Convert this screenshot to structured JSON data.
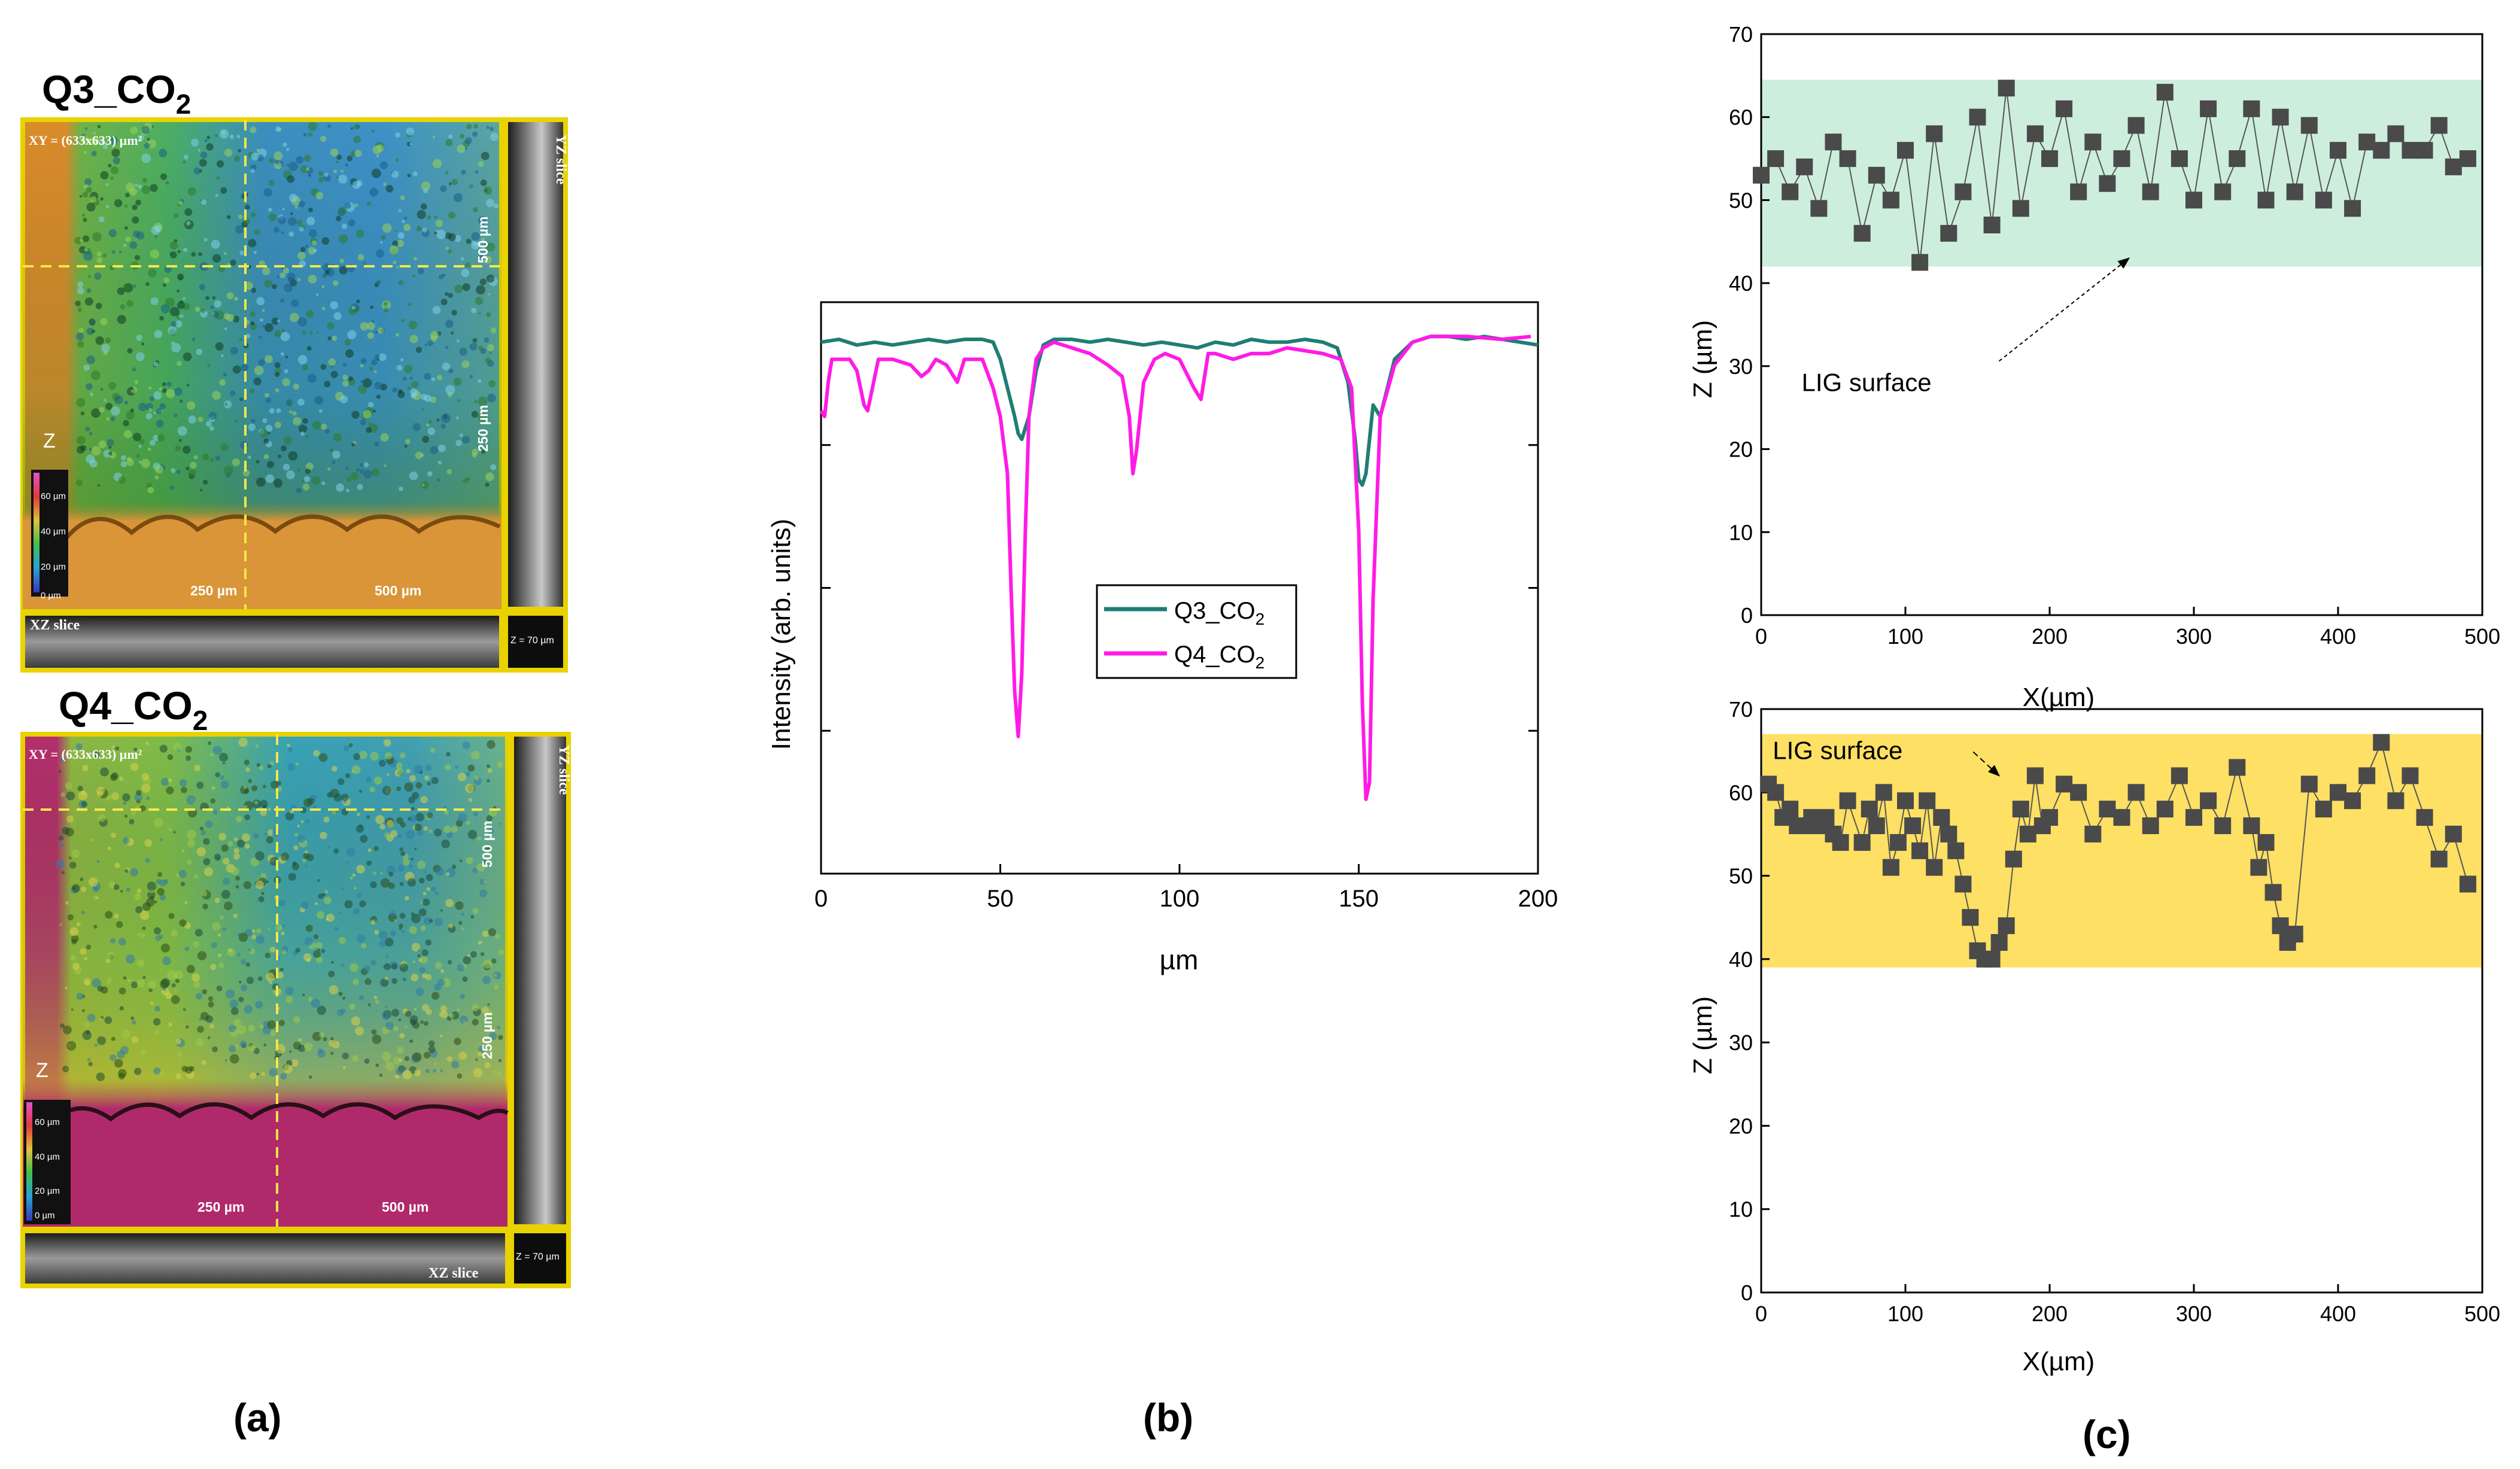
{
  "figure_labels": {
    "a": "(a)",
    "b": "(b)",
    "c": "(c)"
  },
  "panel_a": {
    "images": [
      {
        "title": "Q3_CO",
        "title_sub": "2",
        "xy_label": "XY = (633x633) µm²",
        "yz_label": "YZ slice",
        "xz_label": "XZ slice",
        "z_range": "Z = 70 µm",
        "z_axis": "Z",
        "scale_x": [
          "250 µm",
          "500 µm"
        ],
        "scale_y": [
          "500 µm",
          "250 µm"
        ],
        "colorbar": [
          "60 µm",
          "40 µm",
          "20 µm",
          "0 µm"
        ],
        "base_color": "#d8922e"
      },
      {
        "title": "Q4_CO",
        "title_sub": "2",
        "xy_label": "XY = (633x633) µm²",
        "yz_label": "YZ slice",
        "xz_label": "XZ slice",
        "z_range": "Z = 70 µm",
        "z_axis": "Z",
        "scale_x": [
          "250 µm",
          "500 µm"
        ],
        "scale_y": [
          "500 µm",
          "250 µm"
        ],
        "colorbar": [
          "60 µm",
          "40 µm",
          "20 µm",
          "0 µm"
        ],
        "base_color": "#b8306e"
      }
    ]
  },
  "chart_data": [
    {
      "type": "line",
      "id": "b",
      "xlabel": "µm",
      "ylabel": "Intensity (arb. units)",
      "xlim": [
        0,
        200
      ],
      "ylim": [
        0,
        1
      ],
      "xticks": [
        0,
        50,
        100,
        150,
        200
      ],
      "legend": [
        "Q3_CO",
        "Q4_CO"
      ],
      "legend_sub": "2",
      "series": [
        {
          "name": "Q3_CO2",
          "color": "#1e7e74",
          "x": [
            0,
            5,
            10,
            15,
            20,
            25,
            30,
            35,
            40,
            45,
            48,
            50,
            52,
            54,
            55,
            56,
            58,
            60,
            62,
            65,
            70,
            75,
            80,
            85,
            90,
            95,
            100,
            105,
            110,
            115,
            120,
            125,
            130,
            135,
            140,
            144,
            147,
            149,
            150,
            151,
            152,
            153,
            154,
            156,
            158,
            160,
            165,
            170,
            175,
            180,
            185,
            190,
            195,
            200
          ],
          "y": [
            0.93,
            0.935,
            0.925,
            0.93,
            0.925,
            0.93,
            0.935,
            0.93,
            0.935,
            0.935,
            0.93,
            0.9,
            0.85,
            0.8,
            0.77,
            0.76,
            0.8,
            0.88,
            0.925,
            0.935,
            0.935,
            0.93,
            0.935,
            0.93,
            0.925,
            0.93,
            0.925,
            0.92,
            0.93,
            0.925,
            0.935,
            0.93,
            0.93,
            0.935,
            0.93,
            0.92,
            0.86,
            0.76,
            0.69,
            0.68,
            0.7,
            0.76,
            0.82,
            0.8,
            0.85,
            0.9,
            0.93,
            0.94,
            0.94,
            0.935,
            0.94,
            0.935,
            0.93,
            0.925
          ]
        },
        {
          "name": "Q4_CO2",
          "color": "#ff1ae6",
          "x": [
            0,
            1,
            2,
            3,
            5,
            8,
            10,
            12,
            13,
            14,
            16,
            20,
            25,
            28,
            30,
            32,
            35,
            38,
            40,
            45,
            48,
            50,
            52,
            53,
            54,
            55,
            56,
            57,
            58,
            60,
            62,
            65,
            70,
            75,
            80,
            84,
            86,
            87,
            88,
            90,
            93,
            96,
            100,
            104,
            106,
            107,
            108,
            110,
            115,
            120,
            125,
            130,
            140,
            145,
            148,
            150,
            151,
            152,
            153,
            154,
            156,
            160,
            165,
            170,
            180,
            190,
            198
          ],
          "y": [
            0.81,
            0.8,
            0.86,
            0.9,
            0.9,
            0.9,
            0.88,
            0.82,
            0.81,
            0.84,
            0.9,
            0.9,
            0.89,
            0.87,
            0.88,
            0.9,
            0.89,
            0.86,
            0.9,
            0.9,
            0.85,
            0.8,
            0.7,
            0.5,
            0.32,
            0.24,
            0.35,
            0.6,
            0.8,
            0.9,
            0.92,
            0.93,
            0.92,
            0.91,
            0.89,
            0.87,
            0.8,
            0.7,
            0.74,
            0.86,
            0.9,
            0.91,
            0.9,
            0.85,
            0.83,
            0.87,
            0.91,
            0.91,
            0.9,
            0.91,
            0.91,
            0.92,
            0.91,
            0.9,
            0.85,
            0.6,
            0.3,
            0.13,
            0.16,
            0.48,
            0.8,
            0.89,
            0.93,
            0.94,
            0.94,
            0.935,
            0.94
          ]
        }
      ]
    },
    {
      "type": "scatter",
      "id": "c-top",
      "xlabel": "X(µm)",
      "ylabel": "Z (µm)",
      "xlim": [
        0,
        500
      ],
      "ylim": [
        0,
        70
      ],
      "xticks": [
        0,
        100,
        200,
        300,
        400,
        500
      ],
      "yticks": [
        0,
        10,
        20,
        30,
        40,
        50,
        60,
        70
      ],
      "band": {
        "from": 42,
        "to": 64.5,
        "color": "#cdeedd"
      },
      "annotation": "LIG surface",
      "annotation_pos": [
        28,
        27
      ],
      "annotation_arrow_to": [
        255,
        43
      ],
      "x": [
        0,
        10,
        20,
        30,
        40,
        50,
        60,
        70,
        80,
        90,
        100,
        110,
        120,
        130,
        140,
        150,
        160,
        170,
        180,
        190,
        200,
        210,
        220,
        230,
        240,
        250,
        260,
        270,
        280,
        290,
        300,
        310,
        320,
        330,
        340,
        350,
        360,
        370,
        380,
        390,
        400,
        410,
        420,
        430,
        440,
        450,
        460,
        470,
        480,
        490
      ],
      "y": [
        53,
        55,
        51,
        54,
        49,
        57,
        55,
        46,
        53,
        50,
        56,
        42.5,
        58,
        46,
        51,
        60,
        47,
        63.5,
        49,
        58,
        55,
        61,
        51,
        57,
        52,
        55,
        59,
        51,
        63,
        55,
        50,
        61,
        51,
        55,
        61,
        50,
        60,
        51,
        59,
        50,
        56,
        49,
        57,
        56,
        58,
        56,
        56,
        59,
        54,
        55
      ]
    },
    {
      "type": "scatter",
      "id": "c-bottom",
      "xlabel": "X(µm)",
      "ylabel": "Z (µm)",
      "xlim": [
        0,
        500
      ],
      "ylim": [
        0,
        70
      ],
      "xticks": [
        0,
        100,
        200,
        300,
        400,
        500
      ],
      "yticks": [
        0,
        10,
        20,
        30,
        40,
        50,
        60,
        70
      ],
      "band": {
        "from": 39,
        "to": 67,
        "color": "#fde064"
      },
      "annotation": "LIG surface",
      "annotation_pos": [
        8,
        64
      ],
      "annotation_arrow_to": [
        165,
        62
      ],
      "x": [
        5,
        10,
        15,
        20,
        25,
        30,
        35,
        40,
        45,
        50,
        55,
        60,
        70,
        75,
        80,
        85,
        90,
        95,
        100,
        105,
        110,
        115,
        120,
        125,
        130,
        135,
        140,
        145,
        150,
        155,
        160,
        165,
        170,
        175,
        180,
        185,
        190,
        195,
        200,
        210,
        220,
        230,
        240,
        250,
        260,
        270,
        280,
        290,
        300,
        310,
        320,
        330,
        340,
        345,
        350,
        355,
        360,
        365,
        370,
        380,
        390,
        400,
        410,
        420,
        430,
        440,
        450,
        460,
        470,
        480,
        490
      ],
      "y": [
        61,
        60,
        57,
        58,
        56,
        56,
        57,
        56,
        57,
        55,
        54,
        59,
        54,
        58,
        56,
        60,
        51,
        54,
        59,
        56,
        53,
        59,
        51,
        57,
        55,
        53,
        49,
        45,
        41,
        40,
        40,
        42,
        44,
        52,
        58,
        55,
        62,
        56,
        57,
        61,
        60,
        55,
        58,
        57,
        60,
        56,
        58,
        62,
        57,
        59,
        56,
        63,
        56,
        51,
        54,
        48,
        44,
        42,
        43,
        61,
        58,
        60,
        59,
        62,
        66,
        59,
        62,
        57,
        52,
        55,
        49
      ]
    }
  ]
}
